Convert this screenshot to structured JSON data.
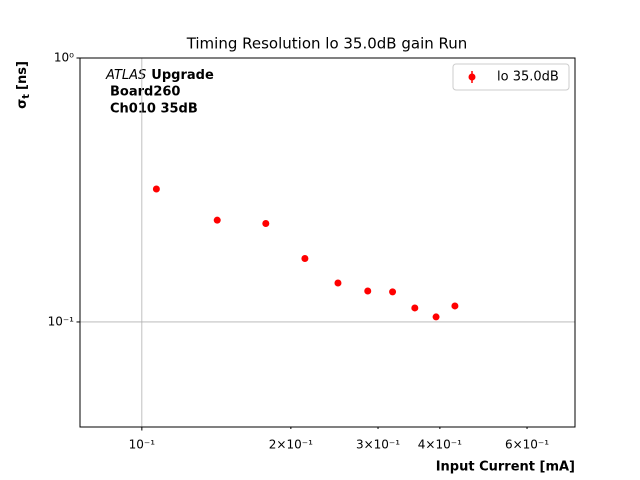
{
  "chart_data": {
    "type": "scatter",
    "title": "Timing Resolution lo 35.0dB gain Run",
    "xlabel": "Input Current [mA]",
    "ylabel": {
      "symbol": "σ",
      "subscript": "t",
      "unit": "[ns]"
    },
    "annotations": {
      "experiment": "ATLAS",
      "tag": "Upgrade",
      "board": "Board260",
      "channel": "Ch010 35dB"
    },
    "x_log": true,
    "y_log": true,
    "grid": true,
    "legend": "upper right",
    "series": [
      {
        "name": "lo 35.0dB",
        "color": "#ff0000",
        "x": [
          0.107,
          0.142,
          0.178,
          0.2135,
          0.249,
          0.286,
          0.321,
          0.356,
          0.393,
          0.429
        ],
        "values": [
          0.319,
          0.243,
          0.236,
          0.174,
          0.1405,
          0.131,
          0.13,
          0.113,
          0.1045,
          0.115
        ]
      }
    ],
    "xlim": [
      0.075,
      0.75
    ],
    "xticks": [
      {
        "value": 0.1,
        "label": "10⁻¹"
      },
      {
        "value": 0.2,
        "label": "2×10⁻¹"
      },
      {
        "value": 0.3,
        "label": "3×10⁻¹"
      },
      {
        "value": 0.4,
        "label": "4×10⁻¹"
      },
      {
        "value": 0.6,
        "label": "6×10⁻¹"
      }
    ],
    "ylim": [
      0.04,
      1
    ],
    "yticks": [
      {
        "value": 0.1,
        "label": "10⁻¹"
      },
      {
        "value": 1,
        "label": "10⁰"
      }
    ]
  }
}
